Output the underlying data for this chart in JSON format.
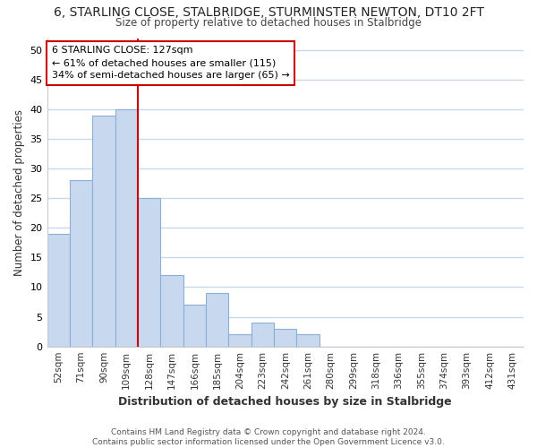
{
  "title": "6, STARLING CLOSE, STALBRIDGE, STURMINSTER NEWTON, DT10 2FT",
  "subtitle": "Size of property relative to detached houses in Stalbridge",
  "xlabel": "Distribution of detached houses by size in Stalbridge",
  "ylabel": "Number of detached properties",
  "categories": [
    "52sqm",
    "71sqm",
    "90sqm",
    "109sqm",
    "128sqm",
    "147sqm",
    "166sqm",
    "185sqm",
    "204sqm",
    "223sqm",
    "242sqm",
    "261sqm",
    "280sqm",
    "299sqm",
    "318sqm",
    "336sqm",
    "355sqm",
    "374sqm",
    "393sqm",
    "412sqm",
    "431sqm"
  ],
  "values": [
    19,
    28,
    39,
    40,
    25,
    12,
    7,
    9,
    2,
    4,
    3,
    2,
    0,
    0,
    0,
    0,
    0,
    0,
    0,
    0,
    0
  ],
  "bar_color": "#c8d8ee",
  "bar_edge_color": "#8ab0d8",
  "vline_color": "#cc0000",
  "annotation_text": "6 STARLING CLOSE: 127sqm\n← 61% of detached houses are smaller (115)\n34% of semi-detached houses are larger (65) →",
  "annotation_box_color": "#ffffff",
  "annotation_box_edge": "#cc0000",
  "ylim": [
    0,
    52
  ],
  "yticks": [
    0,
    5,
    10,
    15,
    20,
    25,
    30,
    35,
    40,
    45,
    50
  ],
  "plot_bg_color": "#ffffff",
  "fig_bg_color": "#ffffff",
  "grid_color": "#c8d8ee",
  "footer": "Contains HM Land Registry data © Crown copyright and database right 2024.\nContains public sector information licensed under the Open Government Licence v3.0."
}
